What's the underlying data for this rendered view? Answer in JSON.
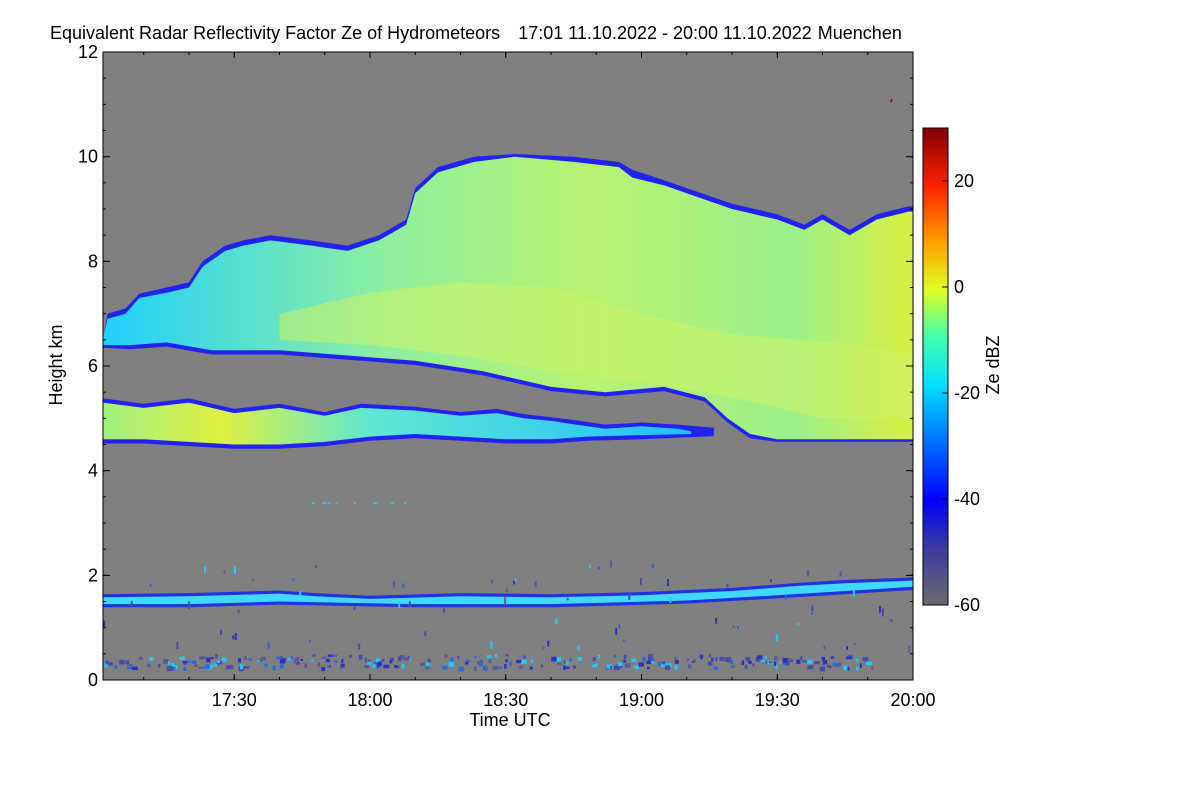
{
  "chart_data": {
    "type": "heatmap",
    "title": "Equivalent Radar Reflectivity Factor Ze of Hydrometeors",
    "time_range": "17:01 11.10.2022 - 20:00 11.10.2022",
    "location": "Muenchen",
    "xlabel": "Time UTC",
    "ylabel": "Height km",
    "xlim_utc": [
      "17:01",
      "20:00"
    ],
    "ylim_km": [
      0,
      12
    ],
    "x_ticks": [
      "17:30",
      "18:00",
      "18:30",
      "19:00",
      "19:30",
      "20:00"
    ],
    "y_ticks": [
      "0",
      "2",
      "4",
      "6",
      "8",
      "10",
      "12"
    ],
    "no_data_color": "#808080",
    "colorbar": {
      "label": "Ze dBZ",
      "range": [
        -60,
        30
      ],
      "ticks": [
        "-60",
        "-40",
        "-20",
        "0",
        "20"
      ],
      "colormap": "jet"
    },
    "layers": [
      {
        "feature": "upper cloud layer",
        "time_start": "17:01",
        "time_end": "20:00",
        "base_km": 4.6,
        "top_km": 10.0,
        "peak_dbz": -5
      },
      {
        "feature": "mid-level band",
        "time_start": "17:01",
        "time_end": "19:15",
        "base_km": 4.5,
        "top_km": 5.4,
        "peak_dbz": -3
      },
      {
        "feature": "low-level band",
        "time_start": "17:01",
        "time_end": "20:00",
        "base_km": 1.4,
        "top_km": 1.9,
        "peak_dbz": -25
      }
    ]
  }
}
